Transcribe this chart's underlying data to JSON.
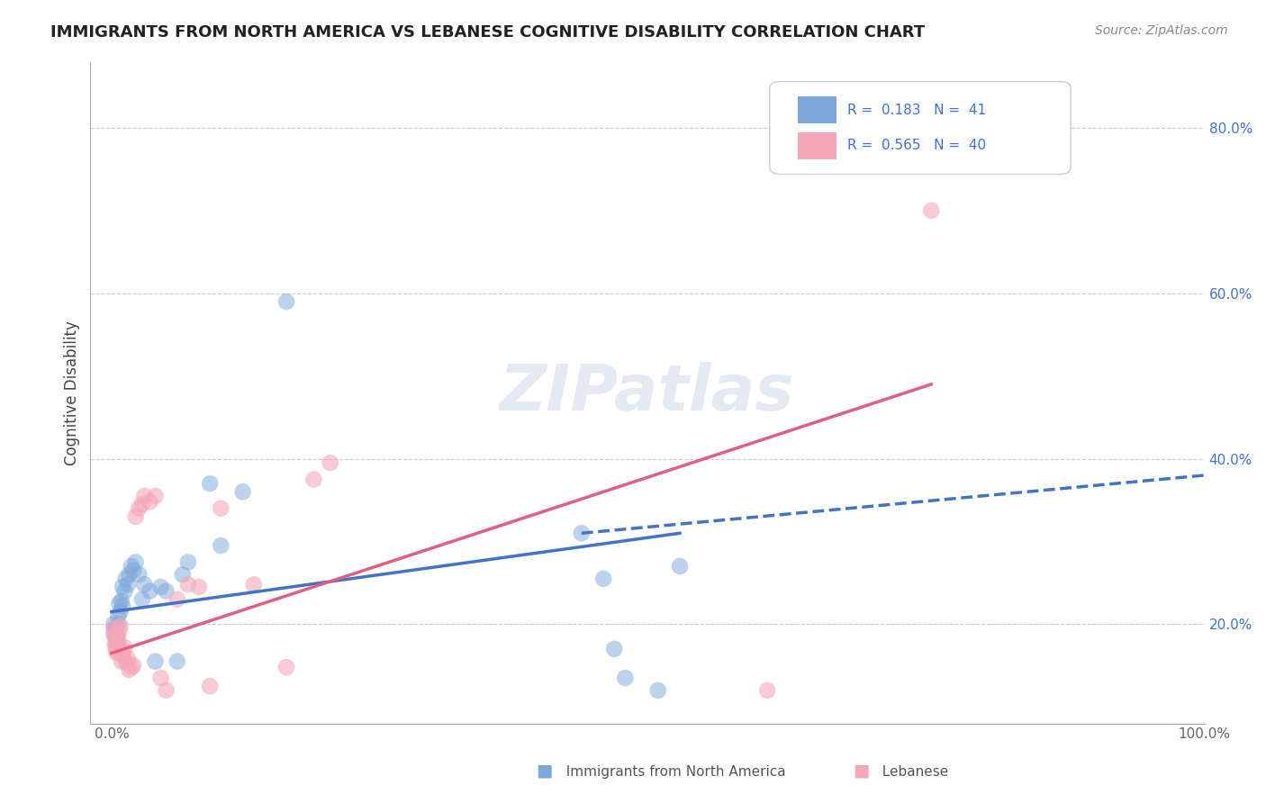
{
  "title": "IMMIGRANTS FROM NORTH AMERICA VS LEBANESE COGNITIVE DISABILITY CORRELATION CHART",
  "source": "Source: ZipAtlas.com",
  "xlabel": "",
  "ylabel": "Cognitive Disability",
  "xlim": [
    0.0,
    1.0
  ],
  "ylim": [
    0.1,
    0.85
  ],
  "x_ticks": [
    0.0,
    0.2,
    0.4,
    0.6,
    0.8,
    1.0
  ],
  "x_tick_labels": [
    "0.0%",
    "",
    "",
    "",
    "",
    "100.0%"
  ],
  "y_tick_labels": [
    "20.0%",
    "40.0%",
    "60.0%",
    "80.0%"
  ],
  "y_ticks": [
    0.2,
    0.4,
    0.6,
    0.8
  ],
  "legend_blue_r": "0.183",
  "legend_blue_n": "41",
  "legend_pink_r": "0.565",
  "legend_pink_n": "40",
  "background_color": "#ffffff",
  "grid_color": "#cccccc",
  "watermark": "ZIPatlas",
  "blue_color": "#7da7d9",
  "pink_color": "#f4a7b9",
  "blue_scatter": [
    [
      0.003,
      0.192
    ],
    [
      0.003,
      0.195
    ],
    [
      0.004,
      0.182
    ],
    [
      0.004,
      0.188
    ],
    [
      0.005,
      0.175
    ],
    [
      0.005,
      0.185
    ],
    [
      0.006,
      0.2
    ],
    [
      0.006,
      0.21
    ],
    [
      0.007,
      0.225
    ],
    [
      0.008,
      0.215
    ],
    [
      0.009,
      0.228
    ],
    [
      0.01,
      0.222
    ],
    [
      0.01,
      0.245
    ],
    [
      0.012,
      0.24
    ],
    [
      0.013,
      0.255
    ],
    [
      0.015,
      0.248
    ],
    [
      0.016,
      0.26
    ],
    [
      0.018,
      0.27
    ],
    [
      0.02,
      0.265
    ],
    [
      0.022,
      0.275
    ],
    [
      0.025,
      0.26
    ],
    [
      0.028,
      0.23
    ],
    [
      0.03,
      0.248
    ],
    [
      0.035,
      0.24
    ],
    [
      0.04,
      0.155
    ],
    [
      0.045,
      0.245
    ],
    [
      0.05,
      0.24
    ],
    [
      0.06,
      0.155
    ],
    [
      0.065,
      0.26
    ],
    [
      0.07,
      0.275
    ],
    [
      0.09,
      0.37
    ],
    [
      0.1,
      0.295
    ],
    [
      0.12,
      0.36
    ],
    [
      0.16,
      0.59
    ],
    [
      0.43,
      0.31
    ],
    [
      0.45,
      0.255
    ],
    [
      0.46,
      0.17
    ],
    [
      0.47,
      0.135
    ],
    [
      0.5,
      0.12
    ],
    [
      0.52,
      0.27
    ],
    [
      0.002,
      0.2
    ]
  ],
  "pink_scatter": [
    [
      0.002,
      0.188
    ],
    [
      0.003,
      0.175
    ],
    [
      0.003,
      0.185
    ],
    [
      0.004,
      0.168
    ],
    [
      0.004,
      0.175
    ],
    [
      0.005,
      0.165
    ],
    [
      0.005,
      0.17
    ],
    [
      0.006,
      0.178
    ],
    [
      0.006,
      0.185
    ],
    [
      0.007,
      0.192
    ],
    [
      0.008,
      0.198
    ],
    [
      0.009,
      0.155
    ],
    [
      0.01,
      0.162
    ],
    [
      0.011,
      0.168
    ],
    [
      0.012,
      0.172
    ],
    [
      0.013,
      0.155
    ],
    [
      0.015,
      0.158
    ],
    [
      0.016,
      0.145
    ],
    [
      0.018,
      0.148
    ],
    [
      0.02,
      0.15
    ],
    [
      0.022,
      0.33
    ],
    [
      0.025,
      0.34
    ],
    [
      0.028,
      0.345
    ],
    [
      0.03,
      0.355
    ],
    [
      0.035,
      0.348
    ],
    [
      0.04,
      0.355
    ],
    [
      0.045,
      0.135
    ],
    [
      0.05,
      0.12
    ],
    [
      0.06,
      0.23
    ],
    [
      0.07,
      0.248
    ],
    [
      0.08,
      0.245
    ],
    [
      0.09,
      0.125
    ],
    [
      0.1,
      0.34
    ],
    [
      0.13,
      0.248
    ],
    [
      0.16,
      0.148
    ],
    [
      0.185,
      0.375
    ],
    [
      0.2,
      0.395
    ],
    [
      0.6,
      0.12
    ],
    [
      0.75,
      0.7
    ],
    [
      0.002,
      0.195
    ]
  ],
  "blue_line": [
    [
      0.0,
      0.215
    ],
    [
      0.52,
      0.31
    ]
  ],
  "pink_line": [
    [
      0.0,
      0.165
    ],
    [
      0.75,
      0.49
    ]
  ],
  "blue_dashed_line": [
    [
      0.43,
      0.31
    ],
    [
      1.0,
      0.38
    ]
  ],
  "pink_dot_line": []
}
